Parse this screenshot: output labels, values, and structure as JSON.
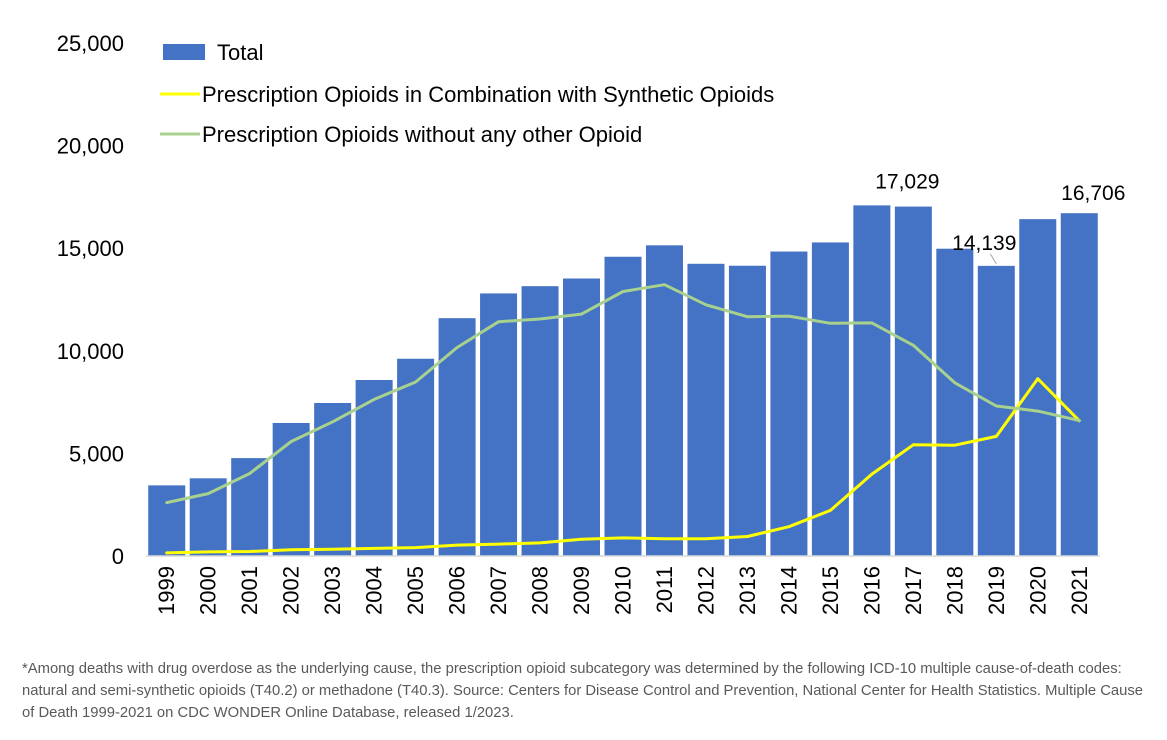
{
  "chart_data": {
    "type": "bar",
    "title": "",
    "xlabel": "",
    "ylabel": "",
    "categories": [
      "1999",
      "2000",
      "2001",
      "2002",
      "2003",
      "2004",
      "2005",
      "2006",
      "2007",
      "2008",
      "2009",
      "2010",
      "2011",
      "2012",
      "2013",
      "2014",
      "2015",
      "2016",
      "2017",
      "2018",
      "2019",
      "2020",
      "2021"
    ],
    "ylim": [
      0,
      25000
    ],
    "yticks": [
      "0",
      "5,000",
      "10,000",
      "15,000",
      "20,000",
      "25,000"
    ],
    "ytick_values": [
      0,
      5000,
      10000,
      15000,
      20000,
      25000
    ],
    "grid": false,
    "legend_position": "top-left",
    "series": [
      {
        "name": "Total",
        "kind": "bar",
        "color": "#4472C4",
        "values": [
          3442,
          3785,
          4770,
          6482,
          7456,
          8577,
          9612,
          11589,
          12796,
          13149,
          13523,
          14583,
          15140,
          14240,
          14145,
          14838,
          15281,
          17087,
          17029,
          14975,
          14139,
          16416,
          16706
        ]
      },
      {
        "name": "Prescription Opioids in Combination with Synthetic Opioids",
        "kind": "line",
        "color": "#FFFF00",
        "values": [
          150,
          200,
          220,
          300,
          330,
          370,
          410,
          530,
          580,
          640,
          820,
          880,
          840,
          840,
          950,
          1430,
          2220,
          3990,
          5420,
          5400,
          5830,
          8640,
          6590
        ]
      },
      {
        "name": "Prescription Opioids without any other Opioid",
        "kind": "line",
        "color": "#A9D18E",
        "values": [
          2600,
          3040,
          4020,
          5580,
          6540,
          7630,
          8480,
          10160,
          11420,
          11550,
          11790,
          12890,
          13220,
          12240,
          11660,
          11690,
          11340,
          11360,
          10270,
          8440,
          7310,
          7060,
          6600
        ]
      }
    ],
    "annotations": [
      {
        "category": "2017",
        "text": "17,029"
      },
      {
        "category": "2019",
        "text": "14,139"
      },
      {
        "category": "2021",
        "text": "16,706"
      }
    ]
  },
  "footnote": "*Among deaths with drug overdose as the underlying cause, the prescription opioid subcategory was determined by the following ICD-10 multiple cause-of-death codes: natural and semi-synthetic opioids (T40.2) or methadone (T40.3). Source: Centers for Disease Control and Prevention, National Center for Health Statistics. Multiple Cause of Death 1999-2021 on CDC WONDER Online Database, released 1/2023."
}
